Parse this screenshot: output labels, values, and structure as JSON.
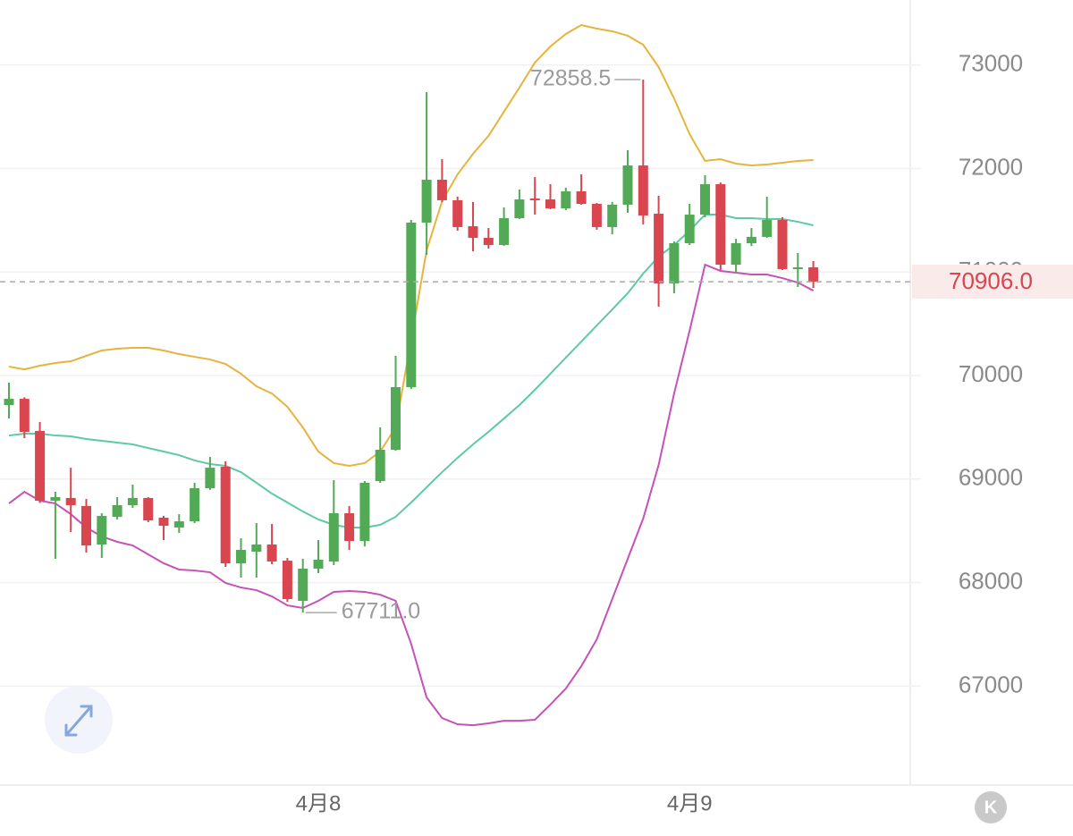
{
  "chart_data": {
    "type": "candlestick",
    "categories": [
      null,
      null,
      null,
      null,
      null,
      null,
      null,
      null,
      null,
      null,
      null,
      null,
      null,
      null,
      null,
      null,
      null,
      null,
      null,
      null,
      "4月8",
      null,
      null,
      null,
      null,
      null,
      null,
      null,
      null,
      null,
      null,
      null,
      null,
      null,
      null,
      null,
      null,
      null,
      null,
      null,
      null,
      null,
      null,
      null,
      "4月9",
      null,
      null,
      null,
      null,
      null,
      null,
      null,
      null
    ],
    "open": [
      69715,
      69775,
      69465,
      68791,
      68817,
      68740,
      68368,
      68636,
      68748,
      68817,
      68627,
      68532,
      68592,
      68912,
      69119,
      68186,
      68299,
      68368,
      68212,
      67824,
      68135,
      68204,
      68670,
      68402,
      68981,
      69283,
      69888,
      71477,
      71891,
      71693,
      71442,
      71330,
      71261,
      71520,
      71710,
      71701,
      71615,
      71779,
      71658,
      71434,
      71650,
      72029,
      71563,
      70890,
      71278,
      71554,
      71848,
      71071,
      71278,
      71339,
      71503,
      71028,
      71045
    ],
    "high": [
      69931,
      69790,
      69551,
      68877,
      69110,
      68808,
      68670,
      68826,
      68946,
      68826,
      68644,
      68661,
      68964,
      69214,
      69171,
      68428,
      68575,
      68566,
      68238,
      68230,
      68411,
      68990,
      68740,
      68981,
      69499,
      70190,
      71503,
      72738,
      72090,
      71727,
      71676,
      71425,
      71624,
      71796,
      71917,
      71848,
      71813,
      71943,
      71667,
      71676,
      72176,
      72858.5,
      71736,
      71295,
      71658,
      71934,
      71865,
      71321,
      71425,
      71727,
      71529,
      71183,
      71105
    ],
    "low": [
      69585,
      69395,
      68770,
      68230,
      68489,
      68290,
      68238,
      68610,
      68722,
      68584,
      68411,
      68480,
      68575,
      68895,
      68152,
      68048,
      68048,
      68178,
      67815,
      67711,
      68092,
      68169,
      68316,
      68350,
      68964,
      69275,
      69870,
      71166,
      71676,
      71399,
      71200,
      71226,
      71252,
      71511,
      71554,
      71606,
      71598,
      71650,
      71408,
      71364,
      71572,
      71459,
      70665,
      70795,
      71261,
      71529,
      71019,
      70985,
      71252,
      71330,
      71019,
      70855,
      70846
    ],
    "close": [
      69775,
      69456,
      68791,
      68826,
      68748,
      68359,
      68644,
      68748,
      68817,
      68601,
      68549,
      68592,
      68912,
      69110,
      68186,
      68316,
      68368,
      68204,
      67841,
      68135,
      68221,
      68670,
      68402,
      68964,
      69283,
      69888,
      71477,
      71891,
      71693,
      71434,
      71330,
      71261,
      71520,
      71701,
      71693,
      71615,
      71779,
      71658,
      71434,
      71650,
      72029,
      71546,
      70890,
      71278,
      71554,
      71848,
      71071,
      71278,
      71339,
      71503,
      71028,
      71045,
      70906
    ],
    "up_color": "#52aa57",
    "down_color": "#d9464f",
    "lines": [
      {
        "color": "#e6b43c",
        "values": [
          70086,
          70060,
          70095,
          70121,
          70138,
          70190,
          70242,
          70259,
          70268,
          70268,
          70242,
          70207,
          70181,
          70155,
          70112,
          70017,
          69896,
          69827,
          69698,
          69499,
          69266,
          69154,
          69128,
          69154,
          69266,
          69499,
          70345,
          71209,
          71684,
          71943,
          72142,
          72314,
          72548,
          72781,
          73023,
          73178,
          73299,
          73385,
          73351,
          73325,
          73282,
          73195,
          72979,
          72677,
          72332,
          72073,
          72090,
          72047,
          72029,
          72038,
          72055,
          72073,
          72081
        ]
      },
      {
        "color": "#5ec9a6",
        "values": [
          69421,
          69439,
          69439,
          69421,
          69413,
          69387,
          69370,
          69352,
          69335,
          69300,
          69266,
          69231,
          69180,
          69145,
          69128,
          69067,
          68964,
          68860,
          68774,
          68687,
          68610,
          68558,
          68532,
          68532,
          68558,
          68636,
          68774,
          68921,
          69067,
          69205,
          69335,
          69456,
          69585,
          69715,
          69862,
          70017,
          70173,
          70328,
          70483,
          70639,
          70795,
          70985,
          71149,
          71261,
          71399,
          71554,
          71554,
          71520,
          71520,
          71511,
          71511,
          71485,
          71451
        ]
      },
      {
        "color": "#c651b9",
        "values": [
          68765,
          68877,
          68791,
          68765,
          68661,
          68532,
          68446,
          68394,
          68359,
          68273,
          68187,
          68126,
          68117,
          68100,
          67997,
          67953,
          67927,
          67867,
          67780,
          67755,
          67824,
          67910,
          67919,
          67910,
          67884,
          67824,
          67409,
          66891,
          66692,
          66632,
          66623,
          66641,
          66666,
          66666,
          66675,
          66822,
          66977,
          67193,
          67452,
          67841,
          68230,
          68618,
          69136,
          69827,
          70432,
          71071,
          71010,
          70993,
          70976,
          70976,
          70941,
          70898,
          70820
        ]
      }
    ],
    "ylim": [
      66045,
      73627
    ],
    "yticks": [
      67000,
      68000,
      69000,
      70000,
      71000,
      72000,
      73000
    ],
    "grid": true,
    "last_price": {
      "value": 70906,
      "label": "70906.0"
    },
    "max_label": {
      "value": 72858.5,
      "label": "72858.5"
    },
    "min_label": {
      "value": 67711,
      "label": "67711.0"
    }
  },
  "ui": {
    "k_button": "K"
  }
}
